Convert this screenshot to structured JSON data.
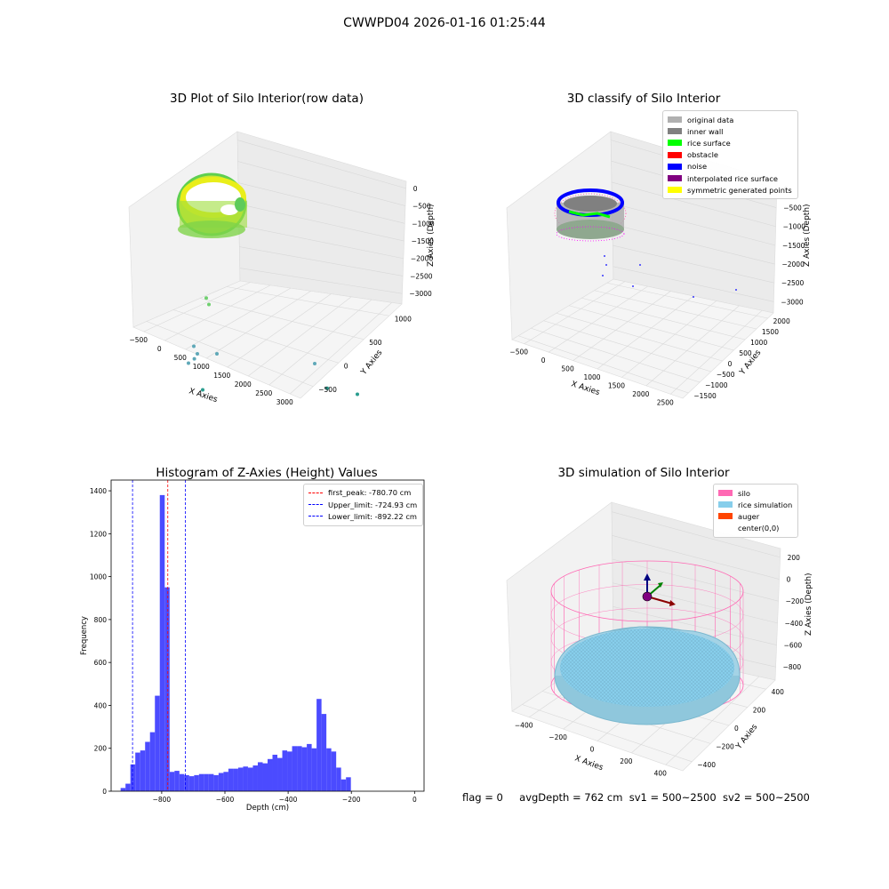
{
  "suptitle": "CWWPD04 2026-01-16 01:25:44",
  "status": {
    "flag": "flag = 0",
    "avg_depth": "avgDepth = 762 cm",
    "sv1": "sv1 = 500~2500",
    "sv2": "sv2 = 500~2500"
  },
  "colors": {
    "histogram_bar": "#4b4bff",
    "peak_line": "#ff0000",
    "limit_line": "#0000ff",
    "original": "#b0b0b0",
    "inner_wall": "#808080",
    "rice_surface": "#00ff00",
    "obstacle": "#ff0000",
    "noise": "#0000ff",
    "interpolated": "#800080",
    "symmetric": "#ffff00",
    "silo": "#ff69b4",
    "rice_sim": "#87ceeb",
    "auger": "#ff4500"
  },
  "chart_data": [
    {
      "type": "scatter",
      "title": "3D Plot of Silo Interior(row data)",
      "xlabel": "X Axies",
      "ylabel": "Y Axies",
      "zlabel": "Z Axies (Depth)",
      "x_ticks": [
        "−500",
        "0",
        "500",
        "1000",
        "1500",
        "2000",
        "2500",
        "3000"
      ],
      "y_ticks": [
        "−500",
        "0",
        "500",
        "1000"
      ],
      "z_ticks": [
        "0",
        "−500",
        "−1000",
        "−1500",
        "−2000",
        "−2500",
        "−3000"
      ],
      "colormap": "viridis",
      "points": [
        {
          "x": 200,
          "y": 300,
          "z": -1550
        },
        {
          "x": 250,
          "y": 250,
          "z": -1600
        },
        {
          "x": 100,
          "y": 0,
          "z": -2100
        },
        {
          "x": 150,
          "y": 0,
          "z": -2200
        },
        {
          "x": 120,
          "y": -50,
          "z": -2250
        },
        {
          "x": 50,
          "y": -100,
          "z": -2300
        },
        {
          "x": 400,
          "y": 100,
          "z": -2200
        },
        {
          "x": 300,
          "y": -300,
          "z": -2500
        },
        {
          "x": 1700,
          "y": 400,
          "z": -2200
        },
        {
          "x": 1900,
          "y": 300,
          "z": -2450
        },
        {
          "x": 2300,
          "y": 400,
          "z": -2500
        }
      ]
    },
    {
      "type": "scatter",
      "title": "3D classify of Silo Interior",
      "xlabel": "X Axies",
      "ylabel": "Y Axies",
      "zlabel": "Z Axies (Depth)",
      "x_ticks": [
        "−500",
        "0",
        "500",
        "1000",
        "1500",
        "2000",
        "2500"
      ],
      "y_ticks": [
        "−1500",
        "−1000",
        "−500",
        "0",
        "500",
        "1000",
        "1500",
        "2000"
      ],
      "z_ticks": [
        "0",
        "−500",
        "−1000",
        "−1500",
        "−2000",
        "−2500",
        "−3000"
      ],
      "legend": [
        "original data",
        "inner wall",
        "rice surface",
        "obstacle",
        "noise",
        "interpolated rice surface",
        "symmetric generated points"
      ],
      "legend_position": "top-right"
    },
    {
      "type": "bar",
      "title": "Histogram of Z-Axies (Height) Values",
      "xlabel": "Depth (cm)",
      "ylabel": "Frequency",
      "xlim": [
        -960,
        30
      ],
      "ylim": [
        0,
        1450
      ],
      "x_ticks": [
        -800,
        -600,
        -400,
        -200,
        0
      ],
      "x_tick_labels": [
        "−800",
        "−600",
        "−400",
        "−200",
        "0"
      ],
      "y_ticks": [
        0,
        200,
        400,
        600,
        800,
        1000,
        1200,
        1400
      ],
      "bin_start": -930,
      "bin_width": 15.5,
      "values": [
        15,
        35,
        125,
        180,
        190,
        230,
        275,
        445,
        1380,
        950,
        90,
        95,
        80,
        75,
        70,
        75,
        80,
        80,
        80,
        75,
        85,
        90,
        105,
        105,
        110,
        115,
        110,
        120,
        135,
        130,
        150,
        170,
        155,
        190,
        185,
        210,
        210,
        205,
        220,
        200,
        430,
        360,
        200,
        185,
        110,
        55,
        65
      ],
      "first_peak": -780.7,
      "upper_limit": -724.93,
      "lower_limit": -892.22,
      "legend": [
        "first_peak: -780.70 cm",
        "Upper_limit: -724.93 cm",
        "Lower_limit: -892.22 cm"
      ],
      "legend_position": "top-right"
    },
    {
      "type": "scatter",
      "title": "3D simulation of Silo Interior",
      "xlabel": "X Axies",
      "ylabel": "Y Axies",
      "zlabel": "Z Axies (Depth)",
      "x_ticks": [
        "−400",
        "−200",
        "0",
        "200",
        "400"
      ],
      "y_ticks": [
        "−400",
        "−200",
        "0",
        "200",
        "400"
      ],
      "z_ticks": [
        "200",
        "0",
        "−200",
        "−400",
        "−600",
        "−800"
      ],
      "legend": [
        "silo",
        "rice simulation",
        "auger",
        "center(0,0)"
      ],
      "legend_position": "top-right"
    }
  ]
}
